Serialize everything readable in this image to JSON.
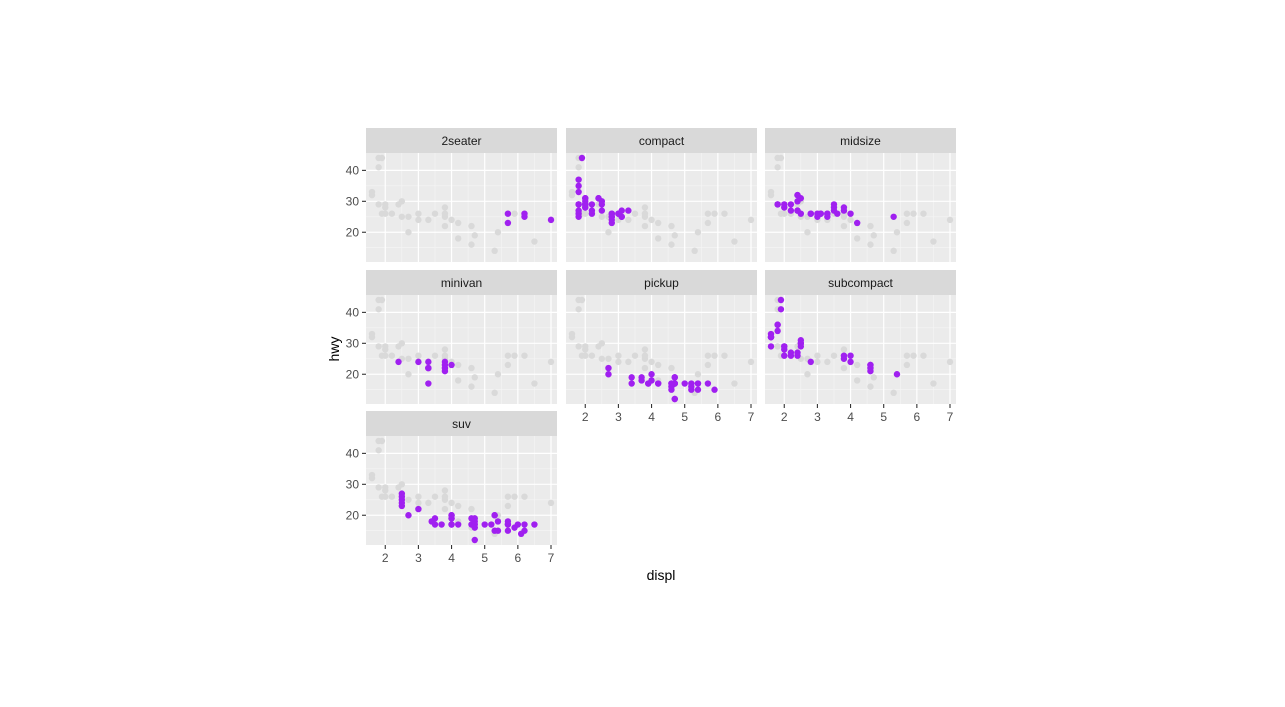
{
  "chart_data": {
    "type": "scatter",
    "title": "",
    "xlabel": "displ",
    "ylabel": "hwy",
    "xlim": [
      1.6,
      7.0
    ],
    "ylim": [
      12,
      44
    ],
    "x_ticks": [
      2,
      3,
      4,
      5,
      6,
      7
    ],
    "y_ticks": [
      20,
      30,
      40
    ],
    "grid": true,
    "highlight_color": "#a020f0",
    "background_color": "#d9d9d9",
    "facets": [
      "2seater",
      "compact",
      "midsize",
      "minivan",
      "pickup",
      "subcompact",
      "suv"
    ],
    "background_points": [
      [
        1.6,
        33
      ],
      [
        1.6,
        32
      ],
      [
        1.8,
        44
      ],
      [
        1.8,
        41
      ],
      [
        1.8,
        29
      ],
      [
        1.9,
        44
      ],
      [
        1.9,
        26
      ],
      [
        2.0,
        29
      ],
      [
        2.0,
        26
      ],
      [
        2.0,
        28
      ],
      [
        2.2,
        26
      ],
      [
        2.4,
        29
      ],
      [
        2.5,
        30
      ],
      [
        2.5,
        25
      ],
      [
        2.7,
        25
      ],
      [
        2.7,
        20
      ],
      [
        3.0,
        26
      ],
      [
        3.0,
        24
      ],
      [
        3.3,
        24
      ],
      [
        3.5,
        26
      ],
      [
        3.8,
        26
      ],
      [
        3.8,
        28
      ],
      [
        3.8,
        22
      ],
      [
        3.8,
        25
      ],
      [
        4.0,
        24
      ],
      [
        4.2,
        23
      ],
      [
        4.2,
        18
      ],
      [
        4.6,
        16
      ],
      [
        4.6,
        22
      ],
      [
        4.7,
        19
      ],
      [
        5.3,
        14
      ],
      [
        5.4,
        20
      ],
      [
        5.7,
        23
      ],
      [
        5.7,
        26
      ],
      [
        5.9,
        26
      ],
      [
        6.2,
        26
      ],
      [
        6.5,
        17
      ],
      [
        7.0,
        24
      ]
    ],
    "series": [
      {
        "name": "2seater",
        "points": [
          [
            5.7,
            26
          ],
          [
            5.7,
            23
          ],
          [
            6.2,
            26
          ],
          [
            6.2,
            25
          ],
          [
            7.0,
            24
          ]
        ]
      },
      {
        "name": "compact",
        "points": [
          [
            1.8,
            29
          ],
          [
            1.8,
            29
          ],
          [
            2.0,
            31
          ],
          [
            2.0,
            30
          ],
          [
            2.8,
            26
          ],
          [
            2.8,
            26
          ],
          [
            3.1,
            27
          ],
          [
            1.8,
            26
          ],
          [
            1.8,
            25
          ],
          [
            2.0,
            28
          ],
          [
            2.0,
            29
          ],
          [
            2.8,
            25
          ],
          [
            2.8,
            25
          ],
          [
            3.1,
            25
          ],
          [
            3.1,
            25
          ],
          [
            2.2,
            26
          ],
          [
            2.2,
            27
          ],
          [
            2.4,
            31
          ],
          [
            2.4,
            31
          ],
          [
            3.0,
            26
          ],
          [
            3.0,
            26
          ],
          [
            3.3,
            27
          ],
          [
            1.8,
            33
          ],
          [
            1.8,
            35
          ],
          [
            1.8,
            37
          ],
          [
            1.9,
            44
          ],
          [
            2.0,
            29
          ],
          [
            2.0,
            29
          ],
          [
            2.0,
            28
          ],
          [
            2.5,
            29
          ],
          [
            2.5,
            27
          ],
          [
            2.8,
            24
          ],
          [
            2.8,
            23
          ],
          [
            1.8,
            27
          ],
          [
            2.0,
            29
          ],
          [
            2.0,
            31
          ],
          [
            2.0,
            29
          ],
          [
            2.2,
            29
          ],
          [
            2.5,
            30
          ]
        ]
      },
      {
        "name": "midsize",
        "points": [
          [
            1.8,
            29
          ],
          [
            1.8,
            29
          ],
          [
            2.0,
            28
          ],
          [
            2.0,
            29
          ],
          [
            2.8,
            26
          ],
          [
            2.8,
            26
          ],
          [
            3.1,
            26
          ],
          [
            4.2,
            23
          ],
          [
            2.4,
            27
          ],
          [
            2.4,
            30
          ],
          [
            3.1,
            26
          ],
          [
            3.5,
            29
          ],
          [
            3.6,
            26
          ],
          [
            2.4,
            32
          ],
          [
            3.0,
            26
          ],
          [
            3.3,
            26
          ],
          [
            3.3,
            26
          ],
          [
            3.3,
            25
          ],
          [
            3.8,
            28
          ],
          [
            3.8,
            27
          ],
          [
            4.0,
            26
          ],
          [
            2.5,
            31
          ],
          [
            2.5,
            26
          ],
          [
            3.5,
            28
          ],
          [
            3.5,
            27
          ],
          [
            3.0,
            25
          ],
          [
            5.3,
            25
          ],
          [
            2.2,
            29
          ],
          [
            2.2,
            27
          ],
          [
            2.4,
            27
          ],
          [
            2.4,
            32
          ]
        ]
      },
      {
        "name": "minivan",
        "points": [
          [
            2.4,
            24
          ],
          [
            3.0,
            24
          ],
          [
            3.3,
            22
          ],
          [
            3.3,
            22
          ],
          [
            3.3,
            24
          ],
          [
            3.3,
            17
          ],
          [
            3.8,
            22
          ],
          [
            3.8,
            21
          ],
          [
            3.8,
            23
          ],
          [
            4.0,
            23
          ],
          [
            3.8,
            24
          ]
        ]
      },
      {
        "name": "pickup",
        "points": [
          [
            3.7,
            19
          ],
          [
            3.7,
            18
          ],
          [
            3.9,
            17
          ],
          [
            3.9,
            17
          ],
          [
            4.7,
            19
          ],
          [
            4.7,
            19
          ],
          [
            4.7,
            12
          ],
          [
            5.2,
            17
          ],
          [
            5.2,
            15
          ],
          [
            4.7,
            17
          ],
          [
            4.7,
            17
          ],
          [
            4.7,
            12
          ],
          [
            4.7,
            17
          ],
          [
            5.2,
            16
          ],
          [
            5.7,
            17
          ],
          [
            5.9,
            15
          ],
          [
            4.2,
            17
          ],
          [
            4.2,
            17
          ],
          [
            4.6,
            16
          ],
          [
            4.6,
            17
          ],
          [
            4.6,
            17
          ],
          [
            5.4,
            17
          ],
          [
            5.4,
            15
          ],
          [
            2.7,
            20
          ],
          [
            2.7,
            22
          ],
          [
            3.4,
            19
          ],
          [
            3.4,
            17
          ],
          [
            4.0,
            20
          ],
          [
            4.7,
            17
          ],
          [
            4.0,
            18
          ],
          [
            5.0,
            17
          ],
          [
            4.6,
            15
          ],
          [
            5.4,
            17
          ]
        ]
      },
      {
        "name": "subcompact",
        "points": [
          [
            3.8,
            26
          ],
          [
            3.8,
            25
          ],
          [
            4.0,
            26
          ],
          [
            4.0,
            24
          ],
          [
            4.6,
            21
          ],
          [
            4.6,
            22
          ],
          [
            4.6,
            23
          ],
          [
            4.6,
            23
          ],
          [
            5.4,
            20
          ],
          [
            1.6,
            33
          ],
          [
            1.6,
            32
          ],
          [
            1.6,
            32
          ],
          [
            1.6,
            29
          ],
          [
            1.6,
            32
          ],
          [
            1.8,
            34
          ],
          [
            1.8,
            36
          ],
          [
            1.8,
            36
          ],
          [
            2.0,
            29
          ],
          [
            2.4,
            26
          ],
          [
            2.4,
            27
          ],
          [
            2.5,
            30
          ],
          [
            2.5,
            29
          ],
          [
            2.2,
            26
          ],
          [
            2.2,
            27
          ],
          [
            2.5,
            30
          ],
          [
            2.5,
            31
          ],
          [
            2.8,
            24
          ],
          [
            1.9,
            44
          ],
          [
            1.9,
            41
          ],
          [
            2.0,
            28
          ],
          [
            2.0,
            26
          ],
          [
            2.0,
            29
          ]
        ]
      },
      {
        "name": "suv",
        "points": [
          [
            5.3,
            20
          ],
          [
            5.3,
            15
          ],
          [
            5.3,
            20
          ],
          [
            5.7,
            17
          ],
          [
            6.0,
            17
          ],
          [
            5.7,
            17
          ],
          [
            5.7,
            15
          ],
          [
            6.2,
            17
          ],
          [
            6.2,
            15
          ],
          [
            6.5,
            17
          ],
          [
            4.7,
            12
          ],
          [
            4.0,
            19
          ],
          [
            4.0,
            20
          ],
          [
            4.6,
            17
          ],
          [
            5.0,
            17
          ],
          [
            4.2,
            17
          ],
          [
            4.7,
            19
          ],
          [
            4.7,
            18
          ],
          [
            5.2,
            17
          ],
          [
            5.7,
            18
          ],
          [
            5.9,
            16
          ],
          [
            3.0,
            22
          ],
          [
            3.7,
            17
          ],
          [
            4.0,
            20
          ],
          [
            4.7,
            17
          ],
          [
            5.4,
            18
          ],
          [
            4.0,
            17
          ],
          [
            4.6,
            19
          ],
          [
            2.5,
            27
          ],
          [
            2.5,
            25
          ],
          [
            2.5,
            26
          ],
          [
            2.5,
            23
          ],
          [
            2.5,
            24
          ],
          [
            2.7,
            20
          ],
          [
            3.4,
            18
          ],
          [
            4.0,
            19
          ],
          [
            4.0,
            17
          ],
          [
            3.5,
            19
          ],
          [
            3.5,
            17
          ],
          [
            4.7,
            16
          ],
          [
            6.1,
            14
          ],
          [
            5.4,
            15
          ]
        ]
      }
    ]
  }
}
